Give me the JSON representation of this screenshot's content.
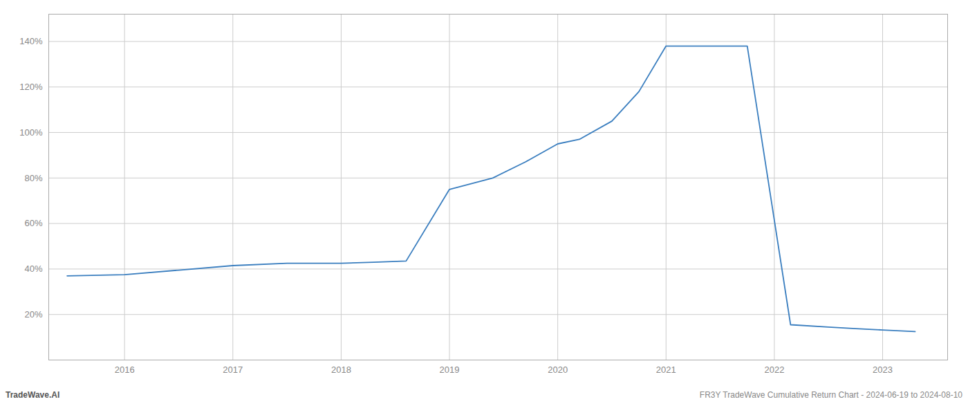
{
  "chart_data": {
    "type": "line",
    "x": [
      2015.47,
      2016.0,
      2016.5,
      2017.0,
      2017.5,
      2018.0,
      2018.3,
      2018.6,
      2019.0,
      2019.4,
      2019.7,
      2020.0,
      2020.2,
      2020.5,
      2020.75,
      2021.0,
      2021.75,
      2022.15,
      2022.5,
      2022.75,
      2023.0,
      2023.3
    ],
    "values": [
      0.37,
      0.375,
      0.395,
      0.415,
      0.425,
      0.425,
      0.43,
      0.435,
      0.75,
      0.8,
      0.87,
      0.95,
      0.97,
      1.05,
      1.18,
      1.38,
      1.38,
      0.155,
      0.145,
      0.138,
      0.132,
      0.125
    ],
    "color": "#3a7ebf",
    "xlim": [
      2015.3,
      2023.6
    ],
    "ylim": [
      0.0,
      1.52
    ],
    "xticks": [
      2016,
      2017,
      2018,
      2019,
      2020,
      2021,
      2022,
      2023
    ],
    "yticks": [
      {
        "value": 0.2,
        "label": "20%"
      },
      {
        "value": 0.4,
        "label": "40%"
      },
      {
        "value": 0.6,
        "label": "60%"
      },
      {
        "value": 0.8,
        "label": "80%"
      },
      {
        "value": 1.0,
        "label": "100%"
      },
      {
        "value": 1.2,
        "label": "120%"
      },
      {
        "value": 1.4,
        "label": "140%"
      }
    ],
    "grid": true,
    "annotations": [
      "TradeWave.AI",
      "FR3Y TradeWave Cumulative Return Chart - 2024-06-19 to 2024-08-10"
    ]
  }
}
